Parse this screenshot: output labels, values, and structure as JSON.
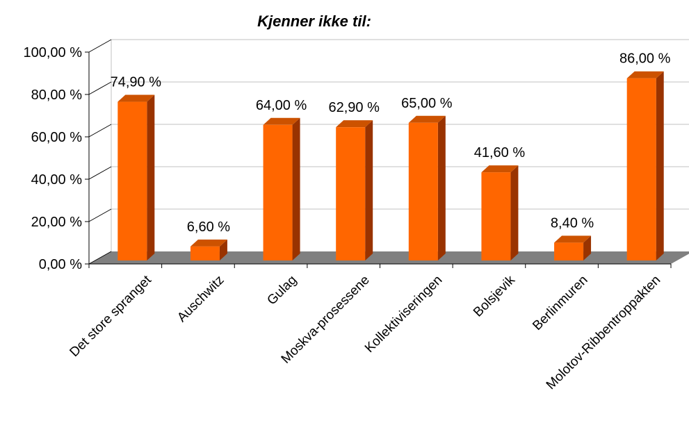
{
  "chart_data": {
    "type": "bar",
    "title": "Kjenner ikke til:",
    "categories": [
      "Det store spranget",
      "Auschwitz",
      "Gulag",
      "Moskva-prosessene",
      "Kollektiviseringen",
      "Bolsjevik",
      "Berlinmuren",
      "Molotov-Ribbentroppakten"
    ],
    "values": [
      74.9,
      6.6,
      64.0,
      62.9,
      65.0,
      41.6,
      8.4,
      86.0
    ],
    "data_labels": [
      "74,90 %",
      "6,60 %",
      "64,00 %",
      "62,90 %",
      "65,00 %",
      "41,60 %",
      "8,40 %",
      "86,00 %"
    ],
    "y_ticks": [
      "0,00 %",
      "20,00 %",
      "40,00 %",
      "60,00 %",
      "80,00 %",
      "100,00 %"
    ],
    "ylim": [
      0,
      100
    ],
    "grid": true,
    "legend": "none",
    "style": "3d-bar",
    "colors": {
      "bar_front": "#ff6600",
      "bar_side": "#993300",
      "bar_top": "#cc5200",
      "floor": "#808080",
      "grid": "#c0c0c0",
      "axis": "#000000"
    }
  }
}
